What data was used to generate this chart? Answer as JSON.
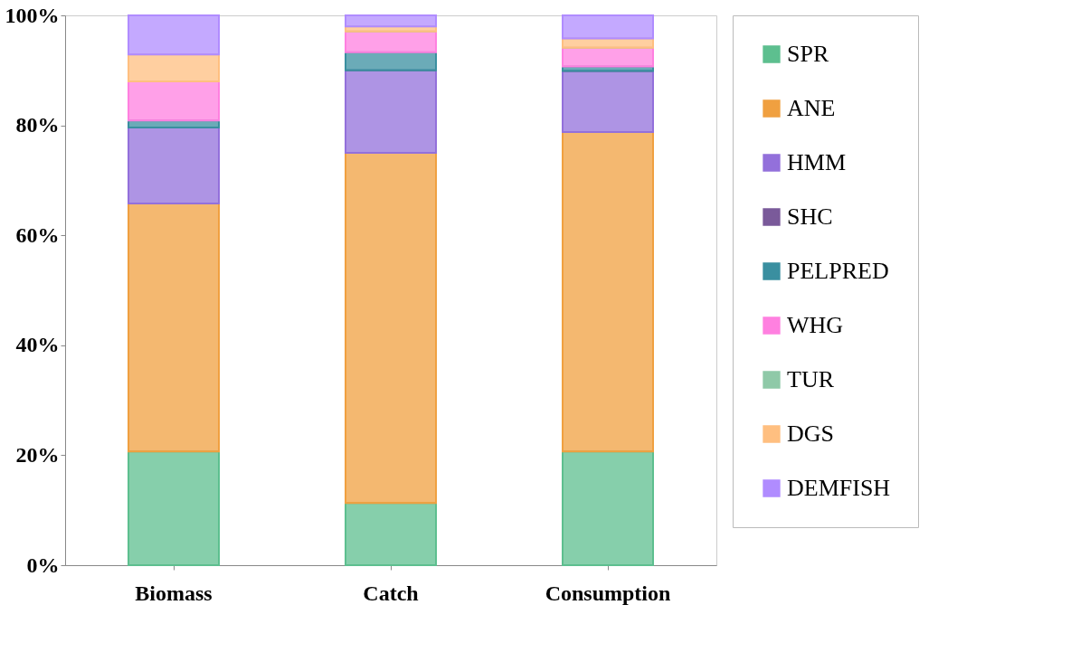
{
  "chart_data": {
    "type": "bar",
    "stacked": true,
    "categories": [
      "Biomass",
      "Catch",
      "Consumption"
    ],
    "series": [
      {
        "name": "SPR",
        "color": "#5dbf8f",
        "values": [
          20.7,
          11.3,
          20.7
        ]
      },
      {
        "name": "ANE",
        "color": "#f0a040",
        "values": [
          45.1,
          63.7,
          58.1
        ]
      },
      {
        "name": "HMM",
        "color": "#9370db",
        "values": [
          13.8,
          15.0,
          11.1
        ]
      },
      {
        "name": "SHC",
        "color": "#7a5a9a",
        "values": [
          0,
          0,
          0
        ]
      },
      {
        "name": "PELPRED",
        "color": "#3a8fa0",
        "values": [
          1.3,
          3.3,
          0.8
        ]
      },
      {
        "name": "WHG",
        "color": "#ff80e0",
        "values": [
          7.1,
          3.8,
          3.4
        ]
      },
      {
        "name": "TUR",
        "color": "#8fc9a8",
        "values": [
          0,
          0,
          0
        ]
      },
      {
        "name": "DGS",
        "color": "#ffbf80",
        "values": [
          4.9,
          0.9,
          1.7
        ]
      },
      {
        "name": "DEMFISH",
        "color": "#b08cff",
        "values": [
          7.1,
          2.0,
          4.2
        ]
      }
    ],
    "ylim": [
      0,
      100
    ],
    "yticks": [
      {
        "value": 0,
        "label": "0%"
      },
      {
        "value": 20,
        "label": "20%"
      },
      {
        "value": 40,
        "label": "40%"
      },
      {
        "value": 60,
        "label": "60%"
      },
      {
        "value": 80,
        "label": "80%"
      },
      {
        "value": 100,
        "label": "100%"
      }
    ],
    "grid": false,
    "legend": "right"
  }
}
